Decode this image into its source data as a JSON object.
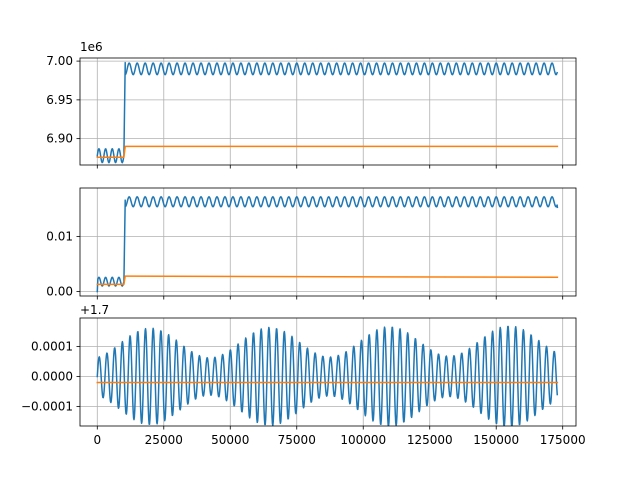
{
  "chart_data": {
    "type": "line",
    "layout": "3 stacked subplots with shared x axis",
    "grid": true,
    "colors": {
      "series_1": "#1f77b4",
      "series_2": "#ff7f0e"
    },
    "xlim": [
      -6500,
      180000
    ],
    "x_ticks": [
      0,
      25000,
      50000,
      75000,
      100000,
      125000,
      150000,
      175000
    ],
    "x_tick_labels": [
      "0",
      "25000",
      "50000",
      "75000",
      "100000",
      "125000",
      "150000",
      "175000"
    ],
    "subplots": [
      {
        "offset_text": "1e6",
        "y_tick_labels": [
          "6.90",
          "6.95",
          "7.00"
        ],
        "y_ticks": [
          6900000,
          6950000,
          7000000
        ],
        "ylim": [
          6866000,
          7004000
        ],
        "series": [
          {
            "color": "#1f77b4",
            "segments": [
              {
                "x_start": 0,
                "x_end": 10000,
                "mean": 6878000,
                "amplitude": 9000,
                "period": 2500
              },
              {
                "x_start": 10500,
                "x_end": 173000,
                "mean": 6990000,
                "amplitude": 7500,
                "period": 3000
              }
            ],
            "transition": {
              "x": 10000,
              "from": 6878000,
              "to": 6998000
            }
          },
          {
            "color": "#ff7f0e",
            "points": [
              [
                0,
                6876000
              ],
              [
                10000,
                6876000
              ],
              [
                10500,
                6890000
              ],
              [
                173000,
                6890000
              ]
            ]
          }
        ]
      },
      {
        "offset_text": "",
        "y_tick_labels": [
          "0.00",
          "0.01"
        ],
        "y_ticks": [
          0,
          0.01
        ],
        "ylim": [
          -0.0008,
          0.0188
        ],
        "series": [
          {
            "color": "#1f77b4",
            "segments": [
              {
                "x_start": 0,
                "x_end": 10000,
                "mean": 0.0018,
                "amplitude": 0.0008,
                "period": 2500
              },
              {
                "x_start": 10500,
                "x_end": 173000,
                "mean": 0.0163,
                "amplitude": 0.0009,
                "period": 3000
              }
            ],
            "start_value": 0,
            "end_value": 0.0153,
            "transition": {
              "x": 10000,
              "from": 0.0015,
              "to": 0.0166
            }
          },
          {
            "color": "#ff7f0e",
            "points": [
              [
                0,
                0.0013
              ],
              [
                10000,
                0.0013
              ],
              [
                10500,
                0.0028
              ],
              [
                173000,
                0.0026
              ]
            ]
          }
        ]
      },
      {
        "offset_text": "+1.7",
        "y_tick_labels": [
          "−0.0001",
          "0.0000",
          "0.0001"
        ],
        "y_ticks": [
          -0.0001,
          0,
          0.0001
        ],
        "ylim": [
          -0.000165,
          0.000195
        ],
        "series": [
          {
            "color": "#1f77b4",
            "oscillation": {
              "x_start": 0,
              "x_end": 173000,
              "period": 2900,
              "mean": 0.0,
              "envelope_min": 6e-05,
              "envelope_max": 0.00016,
              "envelope_period": 45000
            }
          },
          {
            "color": "#ff7f0e",
            "points": [
              [
                0,
                -2e-05
              ],
              [
                173000,
                -2e-05
              ]
            ]
          }
        ]
      }
    ]
  }
}
